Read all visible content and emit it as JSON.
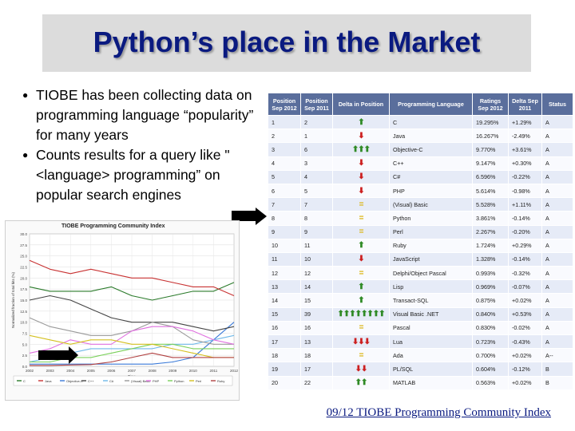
{
  "slide": {
    "title": "Python’s place in the Market",
    "bullets": [
      "TIOBE has been collecting data on programming language “popularity” for many years",
      "Counts results for a query like \"<language> programming” on popular search engines"
    ],
    "footer_link": "09/12 TIOBE Programming Community Index"
  },
  "ranking_table": {
    "headers": [
      "Position Sep 2012",
      "Position Sep 2011",
      "Delta in Position",
      "Programming Language",
      "Ratings Sep 2012",
      "Delta Sep 2011",
      "Status"
    ],
    "rows": [
      {
        "pos2012": "1",
        "pos2011": "2",
        "delta_icon": "up-arrow",
        "delta_count": 1,
        "language": "C",
        "rating": "19.295%",
        "delta": "+1.29%",
        "status": "A"
      },
      {
        "pos2012": "2",
        "pos2011": "1",
        "delta_icon": "down-arrow",
        "delta_count": 1,
        "language": "Java",
        "rating": "16.267%",
        "delta": "-2.49%",
        "status": "A"
      },
      {
        "pos2012": "3",
        "pos2011": "6",
        "delta_icon": "up-arrow",
        "delta_count": 3,
        "language": "Objective-C",
        "rating": "9.770%",
        "delta": "+3.61%",
        "status": "A"
      },
      {
        "pos2012": "4",
        "pos2011": "3",
        "delta_icon": "down-arrow",
        "delta_count": 1,
        "language": "C++",
        "rating": "9.147%",
        "delta": "+0.30%",
        "status": "A"
      },
      {
        "pos2012": "5",
        "pos2011": "4",
        "delta_icon": "down-arrow",
        "delta_count": 1,
        "language": "C#",
        "rating": "6.596%",
        "delta": "-0.22%",
        "status": "A"
      },
      {
        "pos2012": "6",
        "pos2011": "5",
        "delta_icon": "down-arrow",
        "delta_count": 1,
        "language": "PHP",
        "rating": "5.614%",
        "delta": "-0.98%",
        "status": "A"
      },
      {
        "pos2012": "7",
        "pos2011": "7",
        "delta_icon": "equal",
        "delta_count": 1,
        "language": "(Visual) Basic",
        "rating": "5.528%",
        "delta": "+1.11%",
        "status": "A"
      },
      {
        "pos2012": "8",
        "pos2011": "8",
        "delta_icon": "equal",
        "delta_count": 1,
        "language": "Python",
        "rating": "3.861%",
        "delta": "-0.14%",
        "status": "A"
      },
      {
        "pos2012": "9",
        "pos2011": "9",
        "delta_icon": "equal",
        "delta_count": 1,
        "language": "Perl",
        "rating": "2.267%",
        "delta": "-0.20%",
        "status": "A"
      },
      {
        "pos2012": "10",
        "pos2011": "11",
        "delta_icon": "up-arrow",
        "delta_count": 1,
        "language": "Ruby",
        "rating": "1.724%",
        "delta": "+0.29%",
        "status": "A"
      },
      {
        "pos2012": "11",
        "pos2011": "10",
        "delta_icon": "down-arrow",
        "delta_count": 1,
        "language": "JavaScript",
        "rating": "1.328%",
        "delta": "-0.14%",
        "status": "A"
      },
      {
        "pos2012": "12",
        "pos2011": "12",
        "delta_icon": "equal",
        "delta_count": 1,
        "language": "Delphi/Object Pascal",
        "rating": "0.993%",
        "delta": "-0.32%",
        "status": "A"
      },
      {
        "pos2012": "13",
        "pos2011": "14",
        "delta_icon": "up-arrow",
        "delta_count": 1,
        "language": "Lisp",
        "rating": "0.969%",
        "delta": "-0.07%",
        "status": "A"
      },
      {
        "pos2012": "14",
        "pos2011": "15",
        "delta_icon": "up-arrow",
        "delta_count": 1,
        "language": "Transact-SQL",
        "rating": "0.875%",
        "delta": "+0.02%",
        "status": "A"
      },
      {
        "pos2012": "15",
        "pos2011": "39",
        "delta_icon": "up-arrow",
        "delta_count": 8,
        "language": "Visual Basic .NET",
        "rating": "0.840%",
        "delta": "+0.53%",
        "status": "A"
      },
      {
        "pos2012": "16",
        "pos2011": "16",
        "delta_icon": "equal",
        "delta_count": 1,
        "language": "Pascal",
        "rating": "0.830%",
        "delta": "-0.02%",
        "status": "A"
      },
      {
        "pos2012": "17",
        "pos2011": "13",
        "delta_icon": "down-arrow",
        "delta_count": 3,
        "language": "Lua",
        "rating": "0.723%",
        "delta": "-0.43%",
        "status": "A"
      },
      {
        "pos2012": "18",
        "pos2011": "18",
        "delta_icon": "equal",
        "delta_count": 1,
        "language": "Ada",
        "rating": "0.700%",
        "delta": "+0.02%",
        "status": "A--"
      },
      {
        "pos2012": "19",
        "pos2011": "17",
        "delta_icon": "down-arrow",
        "delta_count": 2,
        "language": "PL/SQL",
        "rating": "0.604%",
        "delta": "-0.12%",
        "status": "B"
      },
      {
        "pos2012": "20",
        "pos2011": "22",
        "delta_icon": "up-arrow",
        "delta_count": 2,
        "language": "MATLAB",
        "rating": "0.563%",
        "delta": "+0.02%",
        "status": "B"
      }
    ]
  },
  "chart_data": {
    "type": "line",
    "title": "TIOBE Programming Community Index",
    "xlabel": "Time",
    "ylabel": "Normalized fraction of total hits (%)",
    "x": [
      2002,
      2003,
      2004,
      2005,
      2006,
      2007,
      2008,
      2009,
      2010,
      2011,
      2012
    ],
    "ylim": [
      0,
      30
    ],
    "yticks": [
      "0.0",
      "2.5",
      "5.0",
      "7.5",
      "10.0",
      "12.5",
      "15.0",
      "17.5",
      "20.0",
      "22.5",
      "25.0",
      "27.5",
      "30.0"
    ],
    "grid": true,
    "legend_position": "bottom",
    "series": [
      {
        "name": "C",
        "color": "#2a7a2a",
        "values": [
          18,
          17,
          17,
          17,
          18,
          16,
          15,
          16,
          17,
          17,
          19
        ]
      },
      {
        "name": "Java",
        "color": "#c83232",
        "values": [
          24,
          22,
          21,
          22,
          21,
          20,
          20,
          19,
          18,
          18,
          16
        ]
      },
      {
        "name": "Objective-C",
        "color": "#3a7ad8",
        "values": [
          0.5,
          0.5,
          0.5,
          0.5,
          0.5,
          0.5,
          0.5,
          1,
          2,
          6,
          10
        ]
      },
      {
        "name": "C++",
        "color": "#444444",
        "values": [
          15,
          16,
          15,
          13,
          11,
          10,
          10,
          10,
          9,
          8,
          9
        ]
      },
      {
        "name": "C#",
        "color": "#6fb8e8",
        "values": [
          1,
          2,
          3,
          4,
          4,
          4,
          4,
          5,
          5,
          6,
          7
        ]
      },
      {
        "name": "(Visual) Basic",
        "color": "#9a9a9a",
        "values": [
          11,
          9,
          8,
          7,
          7,
          8,
          10,
          9,
          6,
          5,
          5
        ]
      },
      {
        "name": "PHP",
        "color": "#e070e0",
        "values": [
          3,
          4,
          6,
          5,
          5,
          8,
          9,
          9,
          8,
          6,
          5
        ]
      },
      {
        "name": "Python",
        "color": "#7ad05a",
        "values": [
          1,
          1,
          2,
          2,
          3,
          4,
          5,
          5,
          4,
          4,
          4
        ]
      },
      {
        "name": "Perl",
        "color": "#d4c020",
        "values": [
          7,
          6,
          5,
          6,
          6,
          5,
          5,
          4,
          3,
          2,
          2
        ]
      },
      {
        "name": "Ruby",
        "color": "#b04040",
        "values": [
          0.2,
          0.2,
          0.3,
          0.4,
          1,
          2,
          3,
          2,
          2,
          2,
          2
        ]
      }
    ]
  }
}
